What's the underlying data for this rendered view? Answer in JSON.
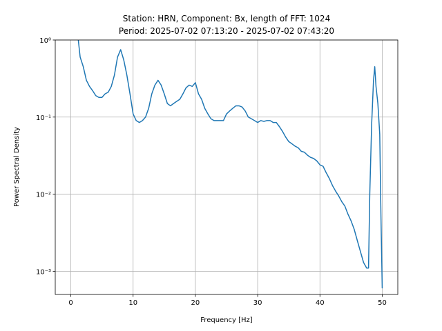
{
  "chart_data": {
    "type": "line",
    "title": [
      "Station: HRN, Component: Bx, length of FFT: 1024",
      "Period: 2025-07-02 07:13:20 - 2025-07-02 07:43:20"
    ],
    "x_label": "Frequency [Hz]",
    "y_label": "Power Spectral Density",
    "xlim": [
      -2.5,
      52.5
    ],
    "xticks": [
      0,
      10,
      20,
      30,
      40,
      50
    ],
    "ylim": [
      0.0005,
      1
    ],
    "log_y": true,
    "yticks": [
      {
        "value": 0.001,
        "label": "10⁻³"
      },
      {
        "value": 0.01,
        "label": "10⁻²"
      },
      {
        "value": 0.1,
        "label": "10⁻¹"
      },
      {
        "value": 1,
        "label": "10⁰"
      }
    ],
    "grid": true,
    "series": [
      {
        "color": "#1f77b4",
        "x": [
          1.2,
          1.5,
          2,
          2.5,
          3,
          3.5,
          4,
          4.5,
          5,
          5.5,
          6,
          6.5,
          7,
          7.5,
          8,
          8.5,
          9,
          9.5,
          10,
          10.5,
          11,
          11.5,
          12,
          12.5,
          13,
          13.5,
          14,
          14.5,
          15,
          15.5,
          16,
          16.5,
          17,
          17.5,
          18,
          18.5,
          19,
          19.5,
          20,
          20.5,
          21,
          21.5,
          22,
          22.5,
          23,
          23.5,
          24,
          24.5,
          25,
          25.5,
          26,
          26.5,
          27,
          27.5,
          28,
          28.5,
          29,
          29.5,
          30,
          30.5,
          31,
          31.5,
          32,
          32.5,
          33,
          33.5,
          34,
          34.5,
          35,
          35.5,
          36,
          36.5,
          37,
          37.5,
          38,
          38.5,
          39,
          39.5,
          40,
          40.5,
          41,
          41.5,
          42,
          42.5,
          43,
          43.5,
          44,
          44.5,
          45,
          45.5,
          46,
          46.5,
          47,
          47.5,
          47.8,
          48,
          48.3,
          48.6,
          48.8,
          49,
          49.3,
          49.6,
          49.8,
          50
        ],
        "values": [
          1.0,
          0.6,
          0.45,
          0.3,
          0.25,
          0.22,
          0.19,
          0.18,
          0.18,
          0.2,
          0.21,
          0.25,
          0.35,
          0.6,
          0.75,
          0.55,
          0.35,
          0.2,
          0.11,
          0.09,
          0.085,
          0.09,
          0.1,
          0.13,
          0.2,
          0.26,
          0.3,
          0.26,
          0.2,
          0.15,
          0.14,
          0.15,
          0.16,
          0.17,
          0.2,
          0.24,
          0.26,
          0.25,
          0.28,
          0.2,
          0.17,
          0.13,
          0.11,
          0.095,
          0.09,
          0.09,
          0.09,
          0.09,
          0.11,
          0.12,
          0.13,
          0.14,
          0.14,
          0.135,
          0.12,
          0.1,
          0.095,
          0.09,
          0.085,
          0.09,
          0.088,
          0.09,
          0.09,
          0.085,
          0.085,
          0.075,
          0.065,
          0.055,
          0.048,
          0.045,
          0.042,
          0.04,
          0.036,
          0.035,
          0.032,
          0.03,
          0.029,
          0.027,
          0.024,
          0.023,
          0.019,
          0.016,
          0.013,
          0.011,
          0.0095,
          0.008,
          0.007,
          0.0055,
          0.0045,
          0.0035,
          0.0025,
          0.0018,
          0.0013,
          0.0011,
          0.0011,
          0.01,
          0.08,
          0.3,
          0.45,
          0.25,
          0.15,
          0.06,
          0.005,
          0.0006
        ]
      }
    ]
  }
}
